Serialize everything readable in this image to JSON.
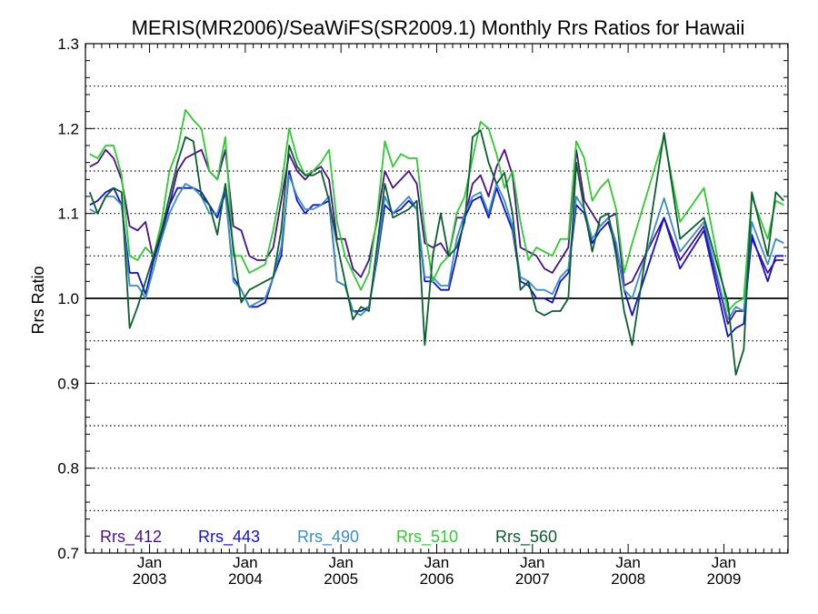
{
  "chart_data": {
    "type": "line",
    "title": "MERIS(MR2006)/SeaWiFS(SR2009.1) Monthly Rrs Ratios for Hawaii",
    "xlabel": "",
    "ylabel": "Rrs Ratio",
    "ylim": [
      0.7,
      1.3
    ],
    "yticks": [
      0.7,
      0.8,
      0.9,
      1.0,
      1.1,
      1.2,
      1.3
    ],
    "ytick_labels": [
      "0.7",
      "0.8",
      "0.9",
      "1.0",
      "1.1",
      "1.2",
      "1.3"
    ],
    "xlim": [
      2002.33,
      2009.67
    ],
    "xticks": [
      2003,
      2004,
      2005,
      2006,
      2007,
      2008,
      2009
    ],
    "xtick_month": "Jan",
    "xtick_years": [
      "2003",
      "2004",
      "2005",
      "2006",
      "2007",
      "2008",
      "2009"
    ],
    "reference_line": 1.0,
    "grid": "dotted horizontal every 0.05",
    "legend_position": "bottom-left",
    "x": [
      2002.375,
      2002.458,
      2002.542,
      2002.625,
      2002.708,
      2002.792,
      2002.875,
      2002.958,
      2003.042,
      2003.125,
      2003.208,
      2003.292,
      2003.375,
      2003.458,
      2003.542,
      2003.625,
      2003.708,
      2003.792,
      2003.875,
      2003.958,
      2004.042,
      2004.125,
      2004.208,
      2004.292,
      2004.375,
      2004.458,
      2004.542,
      2004.625,
      2004.708,
      2004.792,
      2004.875,
      2004.958,
      2005.042,
      2005.125,
      2005.208,
      2005.292,
      2005.375,
      2005.458,
      2005.542,
      2005.625,
      2005.708,
      2005.792,
      2005.875,
      2005.958,
      2006.042,
      2006.125,
      2006.208,
      2006.292,
      2006.375,
      2006.458,
      2006.542,
      2006.625,
      2006.708,
      2006.792,
      2006.875,
      2006.958,
      2007.042,
      2007.125,
      2007.208,
      2007.292,
      2007.375,
      2007.458,
      2007.542,
      2007.625,
      2007.708,
      2007.792,
      2007.875,
      2007.958,
      2008.042,
      2008.375,
      2008.542,
      2008.792,
      2009.042,
      2009.125,
      2009.208,
      2009.292,
      2009.458,
      2009.542,
      2009.625
    ],
    "series": [
      {
        "name": "Rrs_412",
        "color": "#4B0F8C",
        "values": [
          1.155,
          1.16,
          1.175,
          1.165,
          1.14,
          1.085,
          1.08,
          1.09,
          1.045,
          1.075,
          1.11,
          1.15,
          1.165,
          1.17,
          1.175,
          1.15,
          1.14,
          1.175,
          1.085,
          1.08,
          1.05,
          1.045,
          1.045,
          1.06,
          1.115,
          1.17,
          1.15,
          1.14,
          1.15,
          1.155,
          1.14,
          1.07,
          1.07,
          1.035,
          1.025,
          1.045,
          1.09,
          1.15,
          1.13,
          1.14,
          1.15,
          1.135,
          1.065,
          1.06,
          1.065,
          1.05,
          1.095,
          1.095,
          1.135,
          1.145,
          1.12,
          1.155,
          1.175,
          1.145,
          1.06,
          1.055,
          1.05,
          1.035,
          1.03,
          1.045,
          1.06,
          1.175,
          1.115,
          1.1,
          1.085,
          1.095,
          1.1,
          1.015,
          1.02,
          1.095,
          1.045,
          1.085,
          0.97,
          0.985,
          0.985,
          1.07,
          1.03,
          1.045,
          1.045
        ]
      },
      {
        "name": "Rrs_443",
        "color": "#1010D8",
        "values": [
          1.11,
          1.115,
          1.125,
          1.13,
          1.11,
          1.03,
          1.03,
          1.005,
          1.045,
          1.08,
          1.11,
          1.13,
          1.13,
          1.13,
          1.125,
          1.11,
          1.095,
          1.125,
          1.025,
          1.01,
          0.99,
          0.99,
          0.995,
          1.025,
          1.05,
          1.15,
          1.115,
          1.1,
          1.11,
          1.11,
          1.115,
          1.02,
          1.015,
          0.985,
          0.985,
          0.99,
          1.045,
          1.11,
          1.1,
          1.105,
          1.115,
          1.105,
          1.02,
          1.02,
          1.01,
          1.01,
          1.05,
          1.095,
          1.115,
          1.12,
          1.095,
          1.13,
          1.105,
          1.08,
          1.02,
          1.015,
          1.0,
          1.0,
          0.995,
          1.02,
          1.03,
          1.11,
          1.1,
          1.065,
          1.08,
          1.09,
          1.06,
          1.01,
          0.98,
          1.095,
          1.035,
          1.08,
          0.955,
          0.965,
          0.97,
          1.075,
          1.02,
          1.05,
          1.05
        ]
      },
      {
        "name": "Rrs_490",
        "color": "#3A8EC8",
        "values": [
          1.105,
          1.1,
          1.12,
          1.12,
          1.11,
          1.015,
          1.015,
          1.0,
          1.035,
          1.07,
          1.1,
          1.12,
          1.135,
          1.13,
          1.12,
          1.1,
          1.1,
          1.13,
          1.02,
          1.01,
          0.99,
          0.995,
          1.0,
          1.025,
          1.06,
          1.145,
          1.12,
          1.105,
          1.105,
          1.11,
          1.12,
          1.02,
          1.015,
          0.985,
          0.98,
          0.99,
          1.05,
          1.12,
          1.1,
          1.11,
          1.12,
          1.105,
          1.025,
          1.025,
          1.015,
          1.015,
          1.07,
          1.1,
          1.12,
          1.125,
          1.1,
          1.135,
          1.115,
          1.085,
          1.025,
          1.02,
          1.01,
          1.01,
          1.005,
          1.025,
          1.035,
          1.12,
          1.105,
          1.07,
          1.085,
          1.095,
          1.065,
          1.01,
          1.0,
          1.118,
          1.055,
          1.09,
          0.975,
          0.99,
          0.985,
          1.09,
          1.04,
          1.07,
          1.065
        ]
      },
      {
        "name": "Rrs_510",
        "color": "#2ECC2E",
        "values": [
          1.17,
          1.165,
          1.18,
          1.18,
          1.145,
          1.05,
          1.045,
          1.06,
          1.05,
          1.09,
          1.15,
          1.175,
          1.222,
          1.21,
          1.2,
          1.15,
          1.14,
          1.19,
          1.05,
          1.05,
          1.03,
          1.035,
          1.04,
          1.08,
          1.13,
          1.2,
          1.165,
          1.145,
          1.15,
          1.16,
          1.175,
          1.09,
          1.05,
          1.03,
          1.01,
          1.03,
          1.095,
          1.185,
          1.155,
          1.17,
          1.165,
          1.165,
          1.08,
          1.02,
          1.04,
          1.05,
          1.1,
          1.12,
          1.165,
          1.208,
          1.2,
          1.17,
          1.13,
          1.15,
          1.09,
          1.045,
          1.06,
          1.055,
          1.05,
          1.07,
          1.07,
          1.185,
          1.165,
          1.115,
          1.13,
          1.14,
          1.105,
          1.03,
          1.065,
          1.19,
          1.09,
          1.13,
          0.985,
          0.995,
          1.0,
          1.12,
          1.07,
          1.115,
          1.11
        ]
      },
      {
        "name": "Rrs_560",
        "color": "#0B5E2E",
        "values": [
          1.125,
          1.1,
          1.12,
          1.13,
          1.125,
          0.965,
          0.99,
          1.02,
          1.05,
          1.08,
          1.12,
          1.16,
          1.19,
          1.185,
          1.12,
          1.11,
          1.075,
          1.135,
          1.06,
          0.995,
          1.01,
          1.015,
          1.02,
          1.025,
          1.08,
          1.18,
          1.155,
          1.145,
          1.145,
          1.15,
          1.115,
          1.065,
          1.02,
          0.975,
          0.99,
          0.985,
          1.06,
          1.135,
          1.095,
          1.1,
          1.105,
          1.115,
          0.945,
          1.05,
          1.1,
          1.05,
          1.06,
          1.09,
          1.19,
          1.198,
          1.16,
          1.135,
          1.148,
          1.1,
          1.01,
          1.02,
          0.985,
          0.98,
          0.985,
          0.985,
          1.0,
          1.16,
          1.105,
          1.055,
          1.095,
          1.1,
          1.05,
          0.985,
          0.945,
          1.195,
          1.07,
          1.095,
          0.995,
          0.91,
          0.94,
          1.125,
          1.05,
          1.125,
          1.115
        ]
      }
    ]
  }
}
